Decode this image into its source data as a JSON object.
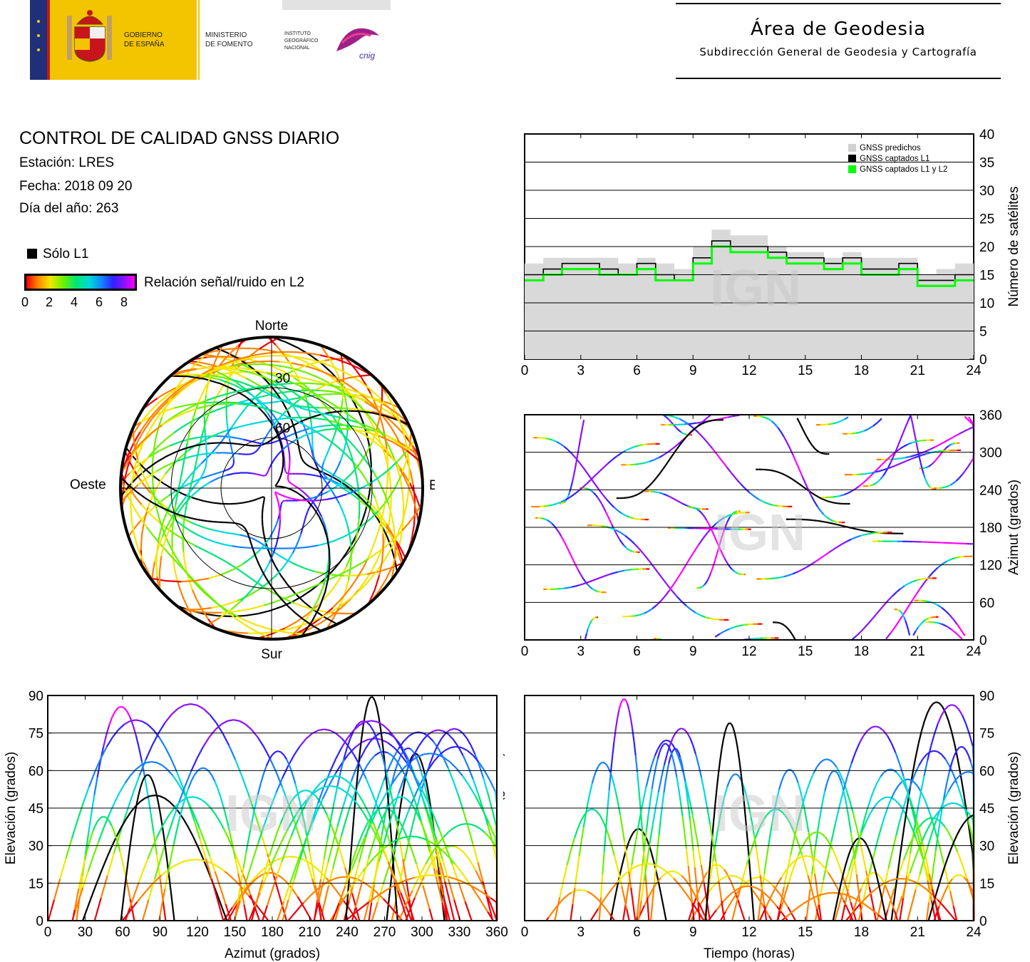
{
  "header": {
    "gov_line1": "GOBIERNO",
    "gov_line2": "DE ESPAÑA",
    "min_line1": "MINISTERIO",
    "min_line2": "DE FOMENTO",
    "ign_line1": "INSTITUTO",
    "ign_line2": "GEOGRÁFICO",
    "ign_line3": "NACIONAL",
    "cnig": "cnig",
    "area_title": "Área de Geodesia",
    "area_subtitle": "Subdirección General de Geodesia y Cartografía"
  },
  "report": {
    "title": "CONTROL DE CALIDAD GNSS DIARIO",
    "station": "Estación: LRES",
    "date": "Fecha: 2018 09 20",
    "doy": "Día del año: 263"
  },
  "legend": {
    "l1_only": "Sólo L1",
    "snr_label": "Relación señal/ruido en L2",
    "snr_ticks": [
      "0",
      "2",
      "4",
      "6",
      "8"
    ]
  },
  "colors": {
    "snr_scale": [
      "#e8000b",
      "#ff8000",
      "#f3e600",
      "#6df000",
      "#00e676",
      "#00d9d9",
      "#1580ff",
      "#3020ff",
      "#8a10ff",
      "#ff00ff"
    ],
    "l1_only": "#000000",
    "predicted": "#d9d9d9",
    "l1l2": "#00ff00"
  },
  "watermark": "IGN",
  "chart_data": [
    {
      "id": "skyplot",
      "type": "scatter",
      "title": "",
      "projection": "polar",
      "directions": {
        "north": "Norte",
        "south": "Sur",
        "east": "Este",
        "west": "Oeste"
      },
      "elevation_rings": [
        "30",
        "60"
      ],
      "note_data": "satellite tracks colored by L2 SNR"
    },
    {
      "id": "satellites",
      "type": "area",
      "ylabel": "Número de satélites",
      "xlim": [
        0,
        24
      ],
      "ylim": [
        0,
        40
      ],
      "x_ticks": [
        "0",
        "3",
        "6",
        "9",
        "12",
        "15",
        "18",
        "21",
        "24"
      ],
      "y_ticks": [
        "0",
        "5",
        "10",
        "15",
        "20",
        "25",
        "30",
        "35",
        "40"
      ],
      "legend": [
        "GNSS predichos",
        "GNSS captados L1",
        "GNSS captados L1 y L2"
      ],
      "series": [
        {
          "name": "GNSS predichos",
          "x": [
            0,
            1,
            2,
            3,
            4,
            5,
            6,
            7,
            8,
            9,
            10,
            11,
            12,
            13,
            14,
            15,
            16,
            17,
            18,
            19,
            20,
            21,
            22,
            23,
            24
          ],
          "values": [
            17,
            18,
            18,
            18,
            18,
            17,
            18,
            17,
            16,
            20,
            23,
            22,
            22,
            20,
            19,
            19,
            18,
            19,
            18,
            18,
            18,
            15,
            16,
            17,
            17
          ]
        },
        {
          "name": "GNSS captados L1",
          "x": [
            0,
            1,
            2,
            3,
            4,
            5,
            6,
            7,
            8,
            9,
            10,
            11,
            12,
            13,
            14,
            15,
            16,
            17,
            18,
            19,
            20,
            21,
            22,
            23,
            24
          ],
          "values": [
            15,
            16,
            17,
            17,
            16,
            15,
            17,
            15,
            14,
            18,
            21,
            20,
            20,
            19,
            18,
            18,
            17,
            18,
            16,
            16,
            17,
            14,
            14,
            15,
            15
          ]
        },
        {
          "name": "GNSS captados L1 y L2",
          "x": [
            0,
            1,
            2,
            3,
            4,
            5,
            6,
            7,
            8,
            9,
            10,
            11,
            12,
            13,
            14,
            15,
            16,
            17,
            18,
            19,
            20,
            21,
            22,
            23,
            24
          ],
          "values": [
            14,
            15,
            16,
            16,
            15,
            15,
            16,
            14,
            14,
            17,
            20,
            19,
            19,
            18,
            17,
            17,
            16,
            17,
            15,
            15,
            16,
            13,
            13,
            14,
            14
          ]
        }
      ]
    },
    {
      "id": "azimuth_time",
      "type": "scatter",
      "ylabel": "Azimut (grados)",
      "xlim": [
        0,
        24
      ],
      "ylim": [
        0,
        360
      ],
      "x_ticks": [
        "0",
        "3",
        "6",
        "9",
        "12",
        "15",
        "18",
        "21",
        "24"
      ],
      "y_ticks": [
        "0",
        "60",
        "120",
        "180",
        "240",
        "300",
        "360"
      ]
    },
    {
      "id": "elev_azimuth",
      "type": "scatter",
      "xlabel": "Azimut (grados)",
      "ylabel": "Elevación (grados)",
      "xlim": [
        0,
        360
      ],
      "ylim": [
        0,
        90
      ],
      "x_ticks": [
        "0",
        "30",
        "60",
        "90",
        "120",
        "150",
        "180",
        "210",
        "240",
        "270",
        "300",
        "330",
        "360"
      ],
      "y_ticks": [
        "0",
        "15",
        "30",
        "45",
        "60",
        "75",
        "90"
      ]
    },
    {
      "id": "elev_time",
      "type": "line",
      "xlabel": "Tiempo (horas)",
      "ylabel_left": "Elevación (grados)",
      "ylabel_right": "Elevación (grados)",
      "xlim": [
        0,
        24
      ],
      "ylim": [
        0,
        90
      ],
      "x_ticks": [
        "0",
        "3",
        "6",
        "9",
        "12",
        "15",
        "18",
        "21",
        "24"
      ],
      "y_ticks": [
        "0",
        "15",
        "30",
        "45",
        "60",
        "75",
        "90"
      ]
    }
  ]
}
